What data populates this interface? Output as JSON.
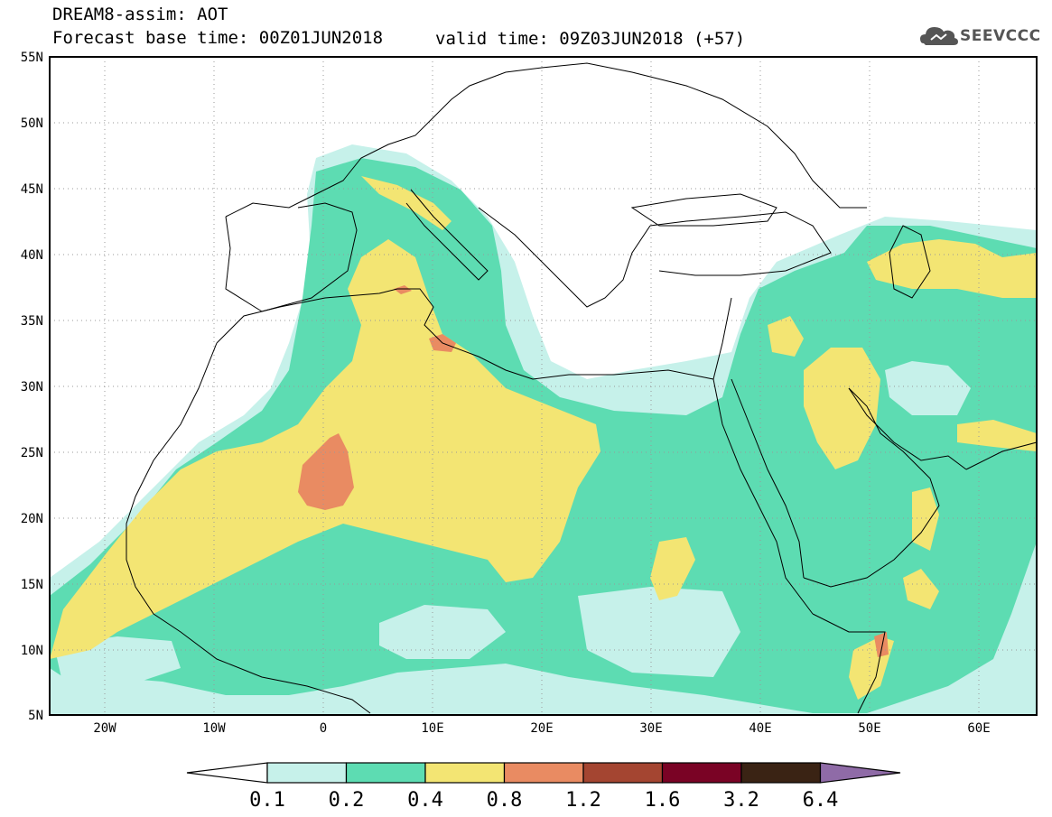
{
  "header": {
    "title": "DREAM8-assim: AOT",
    "forecast_base": "Forecast base time: 00Z01JUN2018",
    "valid_time": "valid time: 09Z03JUN2018 (+57)",
    "logo_text": "SEEVCCC",
    "logo_icon": "cloud-logo-icon"
  },
  "map": {
    "lon_labels": [
      "20W",
      "10W",
      "0",
      "10E",
      "20E",
      "30E",
      "40E",
      "50E",
      "60E"
    ],
    "lat_labels": [
      "55N",
      "50N",
      "45N",
      "40N",
      "35N",
      "30N",
      "25N",
      "20N",
      "15N",
      "10N",
      "5N"
    ],
    "lon_range": [
      -25,
      65
    ],
    "lat_range": [
      5,
      55
    ],
    "grid": "dotted"
  },
  "colorbar": {
    "labels": [
      "0.1",
      "0.2",
      "0.4",
      "0.8",
      "1.2",
      "1.6",
      "3.2",
      "6.4"
    ],
    "colors": [
      "#ffffff",
      "#c6f1ea",
      "#5ddcb2",
      "#f3e573",
      "#e98b62",
      "#a44531",
      "#7a0325",
      "#3a2314",
      "#8f6ba7"
    ]
  },
  "colors": {
    "aot_01_02": "#c6f1ea",
    "aot_02_04": "#5ddcb2",
    "aot_04_08": "#f3e573",
    "aot_08_12": "#e98b62",
    "aot_12_16": "#a44531",
    "aot_16_32": "#7a0325"
  }
}
